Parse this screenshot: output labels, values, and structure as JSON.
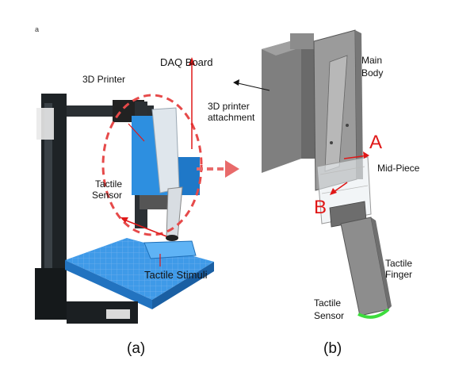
{
  "corner_mark": "a",
  "panel_a": {
    "caption": "(a)",
    "labels": {
      "printer": "3D Printer",
      "daq": "DAQ Board",
      "sensor_line1": "Tactile",
      "sensor_line2": "Sensor",
      "stimuli": "Tactile Stimuli"
    }
  },
  "panel_b": {
    "caption": "(b)",
    "labels": {
      "main_body_line1": "Main",
      "main_body_line2": "Body",
      "attach_line1": "3D printer",
      "attach_line2": "attachment",
      "mid_piece": "Mid-Piece",
      "finger_line1": "Tactile",
      "finger_line2": "Finger",
      "sensor_line1": "Tactile",
      "sensor_line2": "Sensor",
      "axis_a": "A",
      "axis_b": "B"
    }
  },
  "colors": {
    "accent_red": "#e01818",
    "printer_blue": "#2d8fe0",
    "cad_gray": "#8a8a8a",
    "sensor_green": "#3ddc3d"
  }
}
